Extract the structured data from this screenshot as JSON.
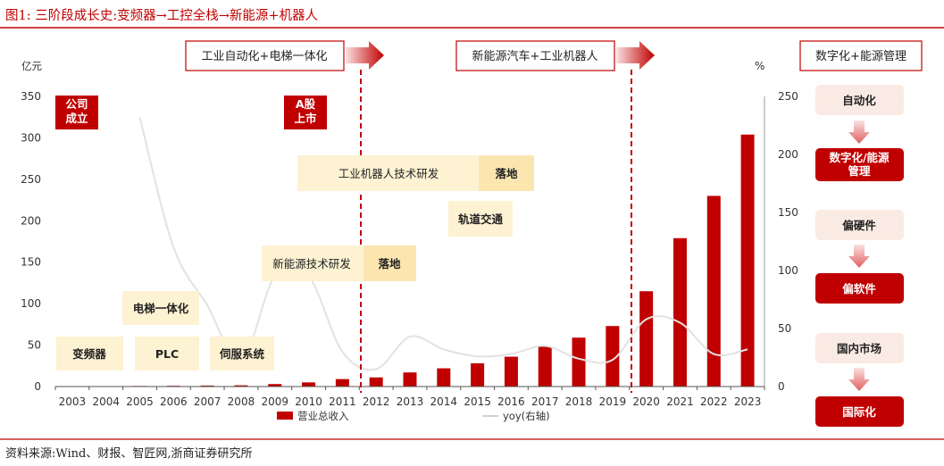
{
  "figure": {
    "caption": "图1:  三阶段成长史:变频器→工控全栈→新能源+机器人",
    "source": "资料来源:Wind、财报、智匠网,浙商证券研究所"
  },
  "chart_data": {
    "type": "bar",
    "categories": [
      "2003",
      "2004",
      "2005",
      "2006",
      "2007",
      "2008",
      "2009",
      "2010",
      "2011",
      "2012",
      "2013",
      "2014",
      "2015",
      "2016",
      "2017",
      "2018",
      "2019",
      "2020",
      "2021",
      "2022",
      "2023"
    ],
    "series": [
      {
        "name": "营业总收入",
        "type": "bar",
        "axis": "left",
        "values": [
          0.3,
          0.5,
          0.7,
          0.9,
          1.2,
          1.5,
          3,
          5,
          9,
          11,
          17,
          22,
          28,
          36,
          48,
          59,
          73,
          115,
          179,
          230,
          304
        ]
      },
      {
        "name": "yoy(右轴)",
        "type": "line",
        "axis": "right",
        "values": [
          null,
          null,
          232,
          120,
          70,
          22,
          95,
          95,
          30,
          15,
          43,
          32,
          26,
          28,
          35,
          24,
          23,
          58,
          55,
          28,
          32
        ]
      }
    ],
    "yleft": {
      "unit": "亿元",
      "ylim": [
        0,
        350
      ],
      "ticks": [
        0,
        50,
        100,
        150,
        200,
        250,
        300,
        350
      ]
    },
    "yright": {
      "unit": "%",
      "ylim": [
        0,
        250
      ],
      "ticks": [
        0,
        50,
        100,
        150,
        200,
        250
      ]
    },
    "legend": "bottom-center",
    "grid": false,
    "colors": {
      "bar": "#c00000",
      "line": "#e2e2e2",
      "label_box": "#c00000",
      "tan_box": "#fdf2d2",
      "pink_box": "#f9ebe3",
      "axis": "#555555"
    }
  },
  "annotations": {
    "phase_arrows": [
      {
        "label": "工业自动化+电梯一体化"
      },
      {
        "label": "新能源汽车+工业机器人"
      }
    ],
    "red_labels": [
      {
        "label": "公司\n成立"
      },
      {
        "label": "A股\n上市"
      }
    ],
    "tan_boxes": [
      {
        "label": "变频器"
      },
      {
        "label": "PLC"
      },
      {
        "label": "电梯一体化"
      },
      {
        "label": "伺服系统"
      },
      {
        "label": "新能源技术研发"
      },
      {
        "label": "落地"
      },
      {
        "label": "工业机器人技术研发"
      },
      {
        "label": "落地"
      },
      {
        "label": "轨道交通"
      }
    ],
    "side_panel": {
      "title": "数字化+能源管理",
      "flows": [
        {
          "from": "自动化",
          "to": "数字化/能源\n管理"
        },
        {
          "from": "偏硬件",
          "to": "偏软件"
        },
        {
          "from": "国内市场",
          "to": "国际化"
        }
      ]
    }
  }
}
